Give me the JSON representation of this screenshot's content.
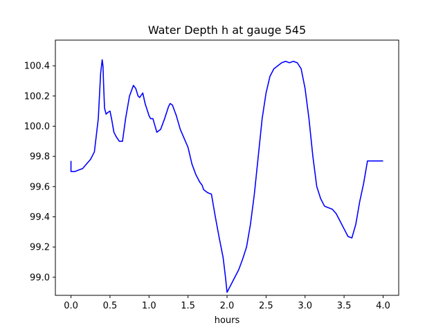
{
  "chart_data": {
    "type": "line",
    "title": "Water Depth h at gauge 545",
    "xlabel": "hours",
    "ylabel": "",
    "xlim": [
      -0.2,
      4.2
    ],
    "ylim": [
      98.88,
      100.57
    ],
    "x_ticks": [
      0.0,
      0.5,
      1.0,
      1.5,
      2.0,
      2.5,
      3.0,
      3.5,
      4.0
    ],
    "x_tick_labels": [
      "0.0",
      "0.5",
      "1.0",
      "1.5",
      "2.0",
      "2.5",
      "3.0",
      "3.5",
      "4.0"
    ],
    "y_ticks": [
      99.0,
      99.2,
      99.4,
      99.6,
      99.8,
      100.0,
      100.2,
      100.4
    ],
    "y_tick_labels": [
      "99.0",
      "99.2",
      "99.4",
      "99.6",
      "99.8",
      "100.0",
      "100.2",
      "100.4"
    ],
    "grid": false,
    "color": "#0000ff",
    "series": [
      {
        "x": [
          0.0,
          0.0,
          0.05,
          0.1,
          0.15,
          0.2,
          0.25,
          0.3,
          0.35,
          0.38,
          0.4,
          0.41,
          0.42,
          0.43,
          0.45,
          0.47,
          0.5,
          0.52,
          0.55,
          0.58,
          0.62,
          0.66,
          0.7,
          0.75,
          0.8,
          0.83,
          0.86,
          0.88,
          0.92,
          0.95,
          1.0,
          1.02,
          1.05,
          1.1,
          1.15,
          1.2,
          1.25,
          1.27,
          1.3,
          1.35,
          1.4,
          1.5,
          1.55,
          1.6,
          1.65,
          1.68,
          1.7,
          1.75,
          1.8,
          1.85,
          1.9,
          1.95,
          1.98,
          2.0,
          2.02,
          2.05,
          2.1,
          2.15,
          2.2,
          2.25,
          2.3,
          2.35,
          2.4,
          2.45,
          2.5,
          2.55,
          2.6,
          2.65,
          2.7,
          2.75,
          2.8,
          2.85,
          2.9,
          2.95,
          3.0,
          3.05,
          3.1,
          3.15,
          3.2,
          3.25,
          3.3,
          3.35,
          3.4,
          3.45,
          3.5,
          3.55,
          3.6,
          3.65,
          3.7,
          3.75,
          3.8,
          3.85,
          3.9,
          3.95,
          4.0
        ],
        "y": [
          99.77,
          99.7,
          99.7,
          99.71,
          99.72,
          99.75,
          99.78,
          99.83,
          100.05,
          100.35,
          100.44,
          100.4,
          100.25,
          100.12,
          100.08,
          100.09,
          100.1,
          100.05,
          99.96,
          99.93,
          99.9,
          99.9,
          100.05,
          100.2,
          100.27,
          100.25,
          100.2,
          100.19,
          100.22,
          100.15,
          100.07,
          100.05,
          100.05,
          99.96,
          99.98,
          100.05,
          100.13,
          100.15,
          100.14,
          100.07,
          99.98,
          99.86,
          99.75,
          99.68,
          99.63,
          99.61,
          99.58,
          99.56,
          99.55,
          99.4,
          99.26,
          99.13,
          99.0,
          98.9,
          98.92,
          98.95,
          99.0,
          99.05,
          99.12,
          99.2,
          99.35,
          99.55,
          99.8,
          100.05,
          100.22,
          100.33,
          100.38,
          100.4,
          100.42,
          100.43,
          100.42,
          100.43,
          100.42,
          100.38,
          100.25,
          100.05,
          99.8,
          99.6,
          99.52,
          99.47,
          99.46,
          99.45,
          99.42,
          99.37,
          99.32,
          99.27,
          99.26,
          99.35,
          99.5,
          99.62,
          99.77,
          99.77,
          99.77,
          99.77,
          99.77
        ]
      }
    ]
  }
}
